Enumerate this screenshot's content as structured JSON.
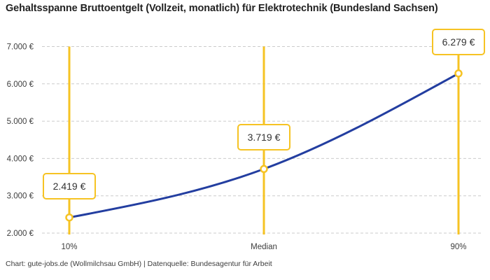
{
  "title": "Gehaltsspanne Bruttoentgelt (Vollzeit, monatlich) für Elektrotechnik (Bundesland Sachsen)",
  "footer": "Chart: gute-jobs.de (Wollmilchsau GmbH) | Datenquelle: Bundesagentur für Arbeit",
  "chart_data": {
    "type": "line",
    "title": "Gehaltsspanne Bruttoentgelt (Vollzeit, monatlich) für Elektrotechnik (Bundesland Sachsen)",
    "categories": [
      "10%",
      "Median",
      "90%"
    ],
    "values": [
      2419,
      3719,
      6279
    ],
    "point_labels": [
      "2.419 €",
      "3.719 €",
      "6.279 €"
    ],
    "xlabel": "",
    "ylabel": "",
    "ylim": [
      2000,
      7000
    ],
    "yticks": [
      2000,
      3000,
      4000,
      5000,
      6000,
      7000
    ],
    "ytick_labels": [
      "2.000 €",
      "3.000 €",
      "4.000 €",
      "5.000 €",
      "6.000 €",
      "7.000 €"
    ],
    "grid": "horizontal-dashed",
    "legend": "none",
    "curve": "monotone",
    "marker_style": "open-circle-on-vertical-range-line",
    "colors": {
      "line": "#233EA0",
      "marker": "#F6C323",
      "marker_fill": "#FFFFFF",
      "grid": "#CBCBCB",
      "axis_text": "#3D3D3D",
      "title_text": "#222222",
      "label_text": "#333333",
      "background": "#FFFFFF"
    },
    "source_note": "Chart: gute-jobs.de (Wollmilchsau GmbH) | Datenquelle: Bundesagentur für Arbeit"
  }
}
